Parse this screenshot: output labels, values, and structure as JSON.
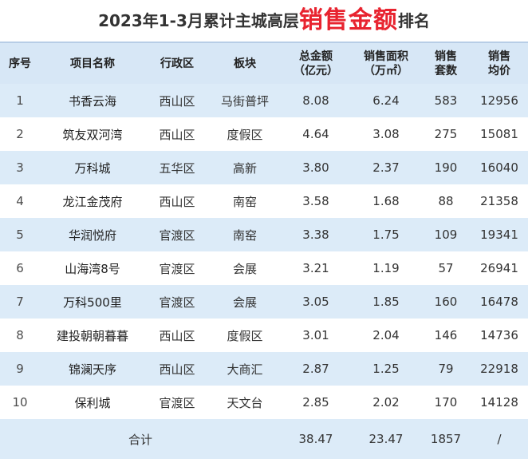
{
  "title": {
    "prefix": "2023年1-3月累计主城高层",
    "highlight": "销售金额",
    "suffix": "排名"
  },
  "colors": {
    "highlight": "#e8232f",
    "header_bg": "#d7e7f6",
    "stripe_bg": "#dcebf8"
  },
  "headers": {
    "seq": "序号",
    "name": "项目名称",
    "district": "行政区",
    "block": "板块",
    "amount_line1": "总金额",
    "amount_line2": "（亿元）",
    "area_line1": "销售面积",
    "area_line2": "（万㎡）",
    "units_line1": "销售",
    "units_line2": "套数",
    "price_line1": "销售",
    "price_line2": "均价"
  },
  "rows": [
    {
      "seq": "1",
      "name": "书香云海",
      "district": "西山区",
      "block": "马街普坪",
      "amount": "8.08",
      "area": "6.24",
      "units": "583",
      "price": "12956"
    },
    {
      "seq": "2",
      "name": "筑友双河湾",
      "district": "西山区",
      "block": "度假区",
      "amount": "4.64",
      "area": "3.08",
      "units": "275",
      "price": "15081"
    },
    {
      "seq": "3",
      "name": "万科城",
      "district": "五华区",
      "block": "高新",
      "amount": "3.80",
      "area": "2.37",
      "units": "190",
      "price": "16040"
    },
    {
      "seq": "4",
      "name": "龙江金茂府",
      "district": "西山区",
      "block": "南窑",
      "amount": "3.58",
      "area": "1.68",
      "units": "88",
      "price": "21358"
    },
    {
      "seq": "5",
      "name": "华润悦府",
      "district": "官渡区",
      "block": "南窑",
      "amount": "3.38",
      "area": "1.75",
      "units": "109",
      "price": "19341"
    },
    {
      "seq": "6",
      "name": "山海湾8号",
      "district": "官渡区",
      "block": "会展",
      "amount": "3.21",
      "area": "1.19",
      "units": "57",
      "price": "26941"
    },
    {
      "seq": "7",
      "name": "万科500里",
      "district": "官渡区",
      "block": "会展",
      "amount": "3.05",
      "area": "1.85",
      "units": "160",
      "price": "16478"
    },
    {
      "seq": "8",
      "name": "建投朝朝暮暮",
      "district": "西山区",
      "block": "度假区",
      "amount": "3.01",
      "area": "2.04",
      "units": "146",
      "price": "14736"
    },
    {
      "seq": "9",
      "name": "锦澜天序",
      "district": "西山区",
      "block": "大商汇",
      "amount": "2.87",
      "area": "1.25",
      "units": "79",
      "price": "22918"
    },
    {
      "seq": "10",
      "name": "保利城",
      "district": "官渡区",
      "block": "天文台",
      "amount": "2.85",
      "area": "2.02",
      "units": "170",
      "price": "14128"
    }
  ],
  "total": {
    "label": "合计",
    "amount": "38.47",
    "area": "23.47",
    "units": "1857",
    "price": "/"
  }
}
